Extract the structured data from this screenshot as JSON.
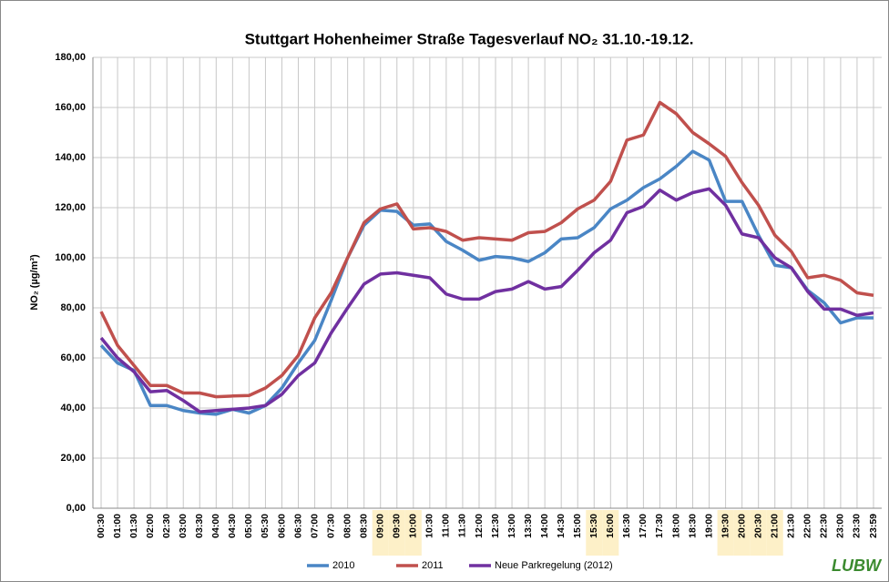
{
  "chart_data": {
    "type": "line",
    "title": "Stuttgart Hohenheimer Straße Tagesverlauf NO₂ 31.10.-19.12.",
    "y_label": "NO₂ (µg/m³)",
    "logo": "LUBW",
    "categories": [
      "00:30",
      "01:00",
      "01:30",
      "02:00",
      "02:30",
      "03:00",
      "03:30",
      "04:00",
      "04:30",
      "05:00",
      "05:30",
      "06:00",
      "06:30",
      "07:00",
      "07:30",
      "08:00",
      "08:30",
      "09:00",
      "09:30",
      "10:00",
      "10:30",
      "11:00",
      "11:30",
      "12:00",
      "12:30",
      "13:00",
      "13:30",
      "14:00",
      "14:30",
      "15:00",
      "15:30",
      "16:00",
      "16:30",
      "17:00",
      "17:30",
      "18:00",
      "18:30",
      "19:00",
      "19:30",
      "20:00",
      "20:30",
      "21:00",
      "21:30",
      "22:00",
      "22:30",
      "23:00",
      "23:30",
      "23:59"
    ],
    "highlight": [
      17,
      18,
      19,
      30,
      31,
      38,
      39,
      40,
      41
    ],
    "highlight_color": "#fdf0c8",
    "series": [
      {
        "name": "2010",
        "color": "#4a86c5",
        "values": [
          65,
          58,
          55,
          41,
          41,
          39,
          38,
          37.5,
          39.5,
          38,
          41,
          48,
          58,
          67,
          83,
          100,
          113,
          119,
          118.5,
          113,
          113.5,
          106.5,
          103,
          99,
          100.5,
          100,
          98.5,
          102,
          107.5,
          108,
          112,
          119.5,
          123,
          128,
          131.5,
          136.5,
          142.5,
          139,
          122.5,
          122.5,
          109,
          97,
          96,
          87,
          82,
          74,
          76,
          76
        ]
      },
      {
        "name": "2011",
        "color": "#c0504d",
        "values": [
          78.5,
          65,
          57,
          49,
          49,
          46,
          46,
          44.5,
          44.8,
          45,
          48,
          53,
          61,
          76,
          86,
          100,
          114,
          119.5,
          121.5,
          111.5,
          112,
          110.5,
          107,
          108,
          107.5,
          107,
          110,
          110.5,
          114,
          119.5,
          123,
          130.5,
          147,
          149,
          162,
          157.5,
          150,
          145.5,
          140.5,
          130,
          121,
          109,
          102.5,
          92,
          93,
          91,
          86,
          85
        ]
      },
      {
        "name": "Neue Parkregelung (2012)",
        "color": "#7030a0",
        "values": [
          68,
          60,
          54.5,
          46.5,
          47,
          43,
          38.5,
          39,
          39.5,
          40,
          41,
          45.5,
          53,
          58,
          70,
          80,
          89.5,
          93.5,
          94,
          93,
          92,
          85.5,
          83.5,
          83.5,
          86.5,
          87.5,
          90.5,
          87.5,
          88.5,
          95,
          102,
          107,
          118,
          120.5,
          127,
          123,
          126,
          127.5,
          121,
          109.5,
          108,
          100,
          96,
          86.5,
          79.5,
          79.5,
          77,
          78
        ]
      }
    ],
    "ylim": [
      0,
      180
    ],
    "yticks": [
      {
        "value": 0,
        "label": "0,00"
      },
      {
        "value": 20,
        "label": "20,00"
      },
      {
        "value": 40,
        "label": "40,00"
      },
      {
        "value": 60,
        "label": "60,00"
      },
      {
        "value": 80,
        "label": "80,00"
      },
      {
        "value": 100,
        "label": "100,00"
      },
      {
        "value": 120,
        "label": "120,00"
      },
      {
        "value": 140,
        "label": "140,00"
      },
      {
        "value": 160,
        "label": "160,00"
      },
      {
        "value": 180,
        "label": "180,00"
      }
    ],
    "grid": true,
    "legend": "bottom"
  }
}
